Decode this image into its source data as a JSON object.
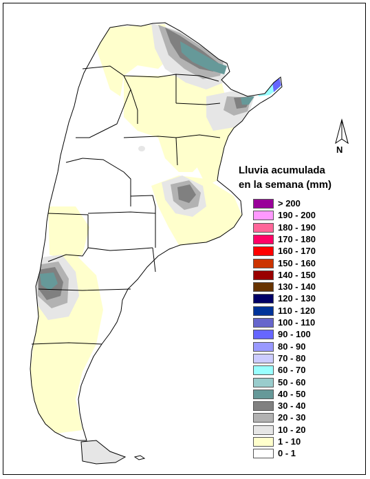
{
  "legend": {
    "title_line1": "Lluvia acumulada",
    "title_line2": "en la semana (mm)",
    "items": [
      {
        "label": "> 200",
        "color": "#990099"
      },
      {
        "label": "190 - 200",
        "color": "#ff99ff"
      },
      {
        "label": "180 - 190",
        "color": "#ff6699"
      },
      {
        "label": "170 - 180",
        "color": "#ff0066"
      },
      {
        "label": "160 - 170",
        "color": "#ff0000"
      },
      {
        "label": "150 - 160",
        "color": "#cc3300"
      },
      {
        "label": "140 - 150",
        "color": "#990000"
      },
      {
        "label": "130 - 140",
        "color": "#663300"
      },
      {
        "label": "120 - 130",
        "color": "#000066"
      },
      {
        "label": "110 - 120",
        "color": "#003399"
      },
      {
        "label": "100 - 110",
        "color": "#6666cc"
      },
      {
        "label": "90 - 100",
        "color": "#6666ff"
      },
      {
        "label": "80 - 90",
        "color": "#9999ff"
      },
      {
        "label": "70 - 80",
        "color": "#ccccff"
      },
      {
        "label": "60 - 70",
        "color": "#99ffff"
      },
      {
        "label": "50 - 60",
        "color": "#99cccc"
      },
      {
        "label": "40 - 50",
        "color": "#669999"
      },
      {
        "label": "30 - 40",
        "color": "#808080"
      },
      {
        "label": "20 - 30",
        "color": "#b2b2b2"
      },
      {
        "label": "10 - 20",
        "color": "#e6e6e6"
      },
      {
        "label": "1 - 10",
        "color": "#ffffcc"
      },
      {
        "label": "0 - 1",
        "color": "#ffffff"
      }
    ]
  },
  "north_arrow": {
    "letter": "N"
  },
  "colors": {
    "land": "#ffffff",
    "border": "#000000",
    "frame": "#000000"
  },
  "icons": {
    "north": "north-arrow-icon"
  }
}
